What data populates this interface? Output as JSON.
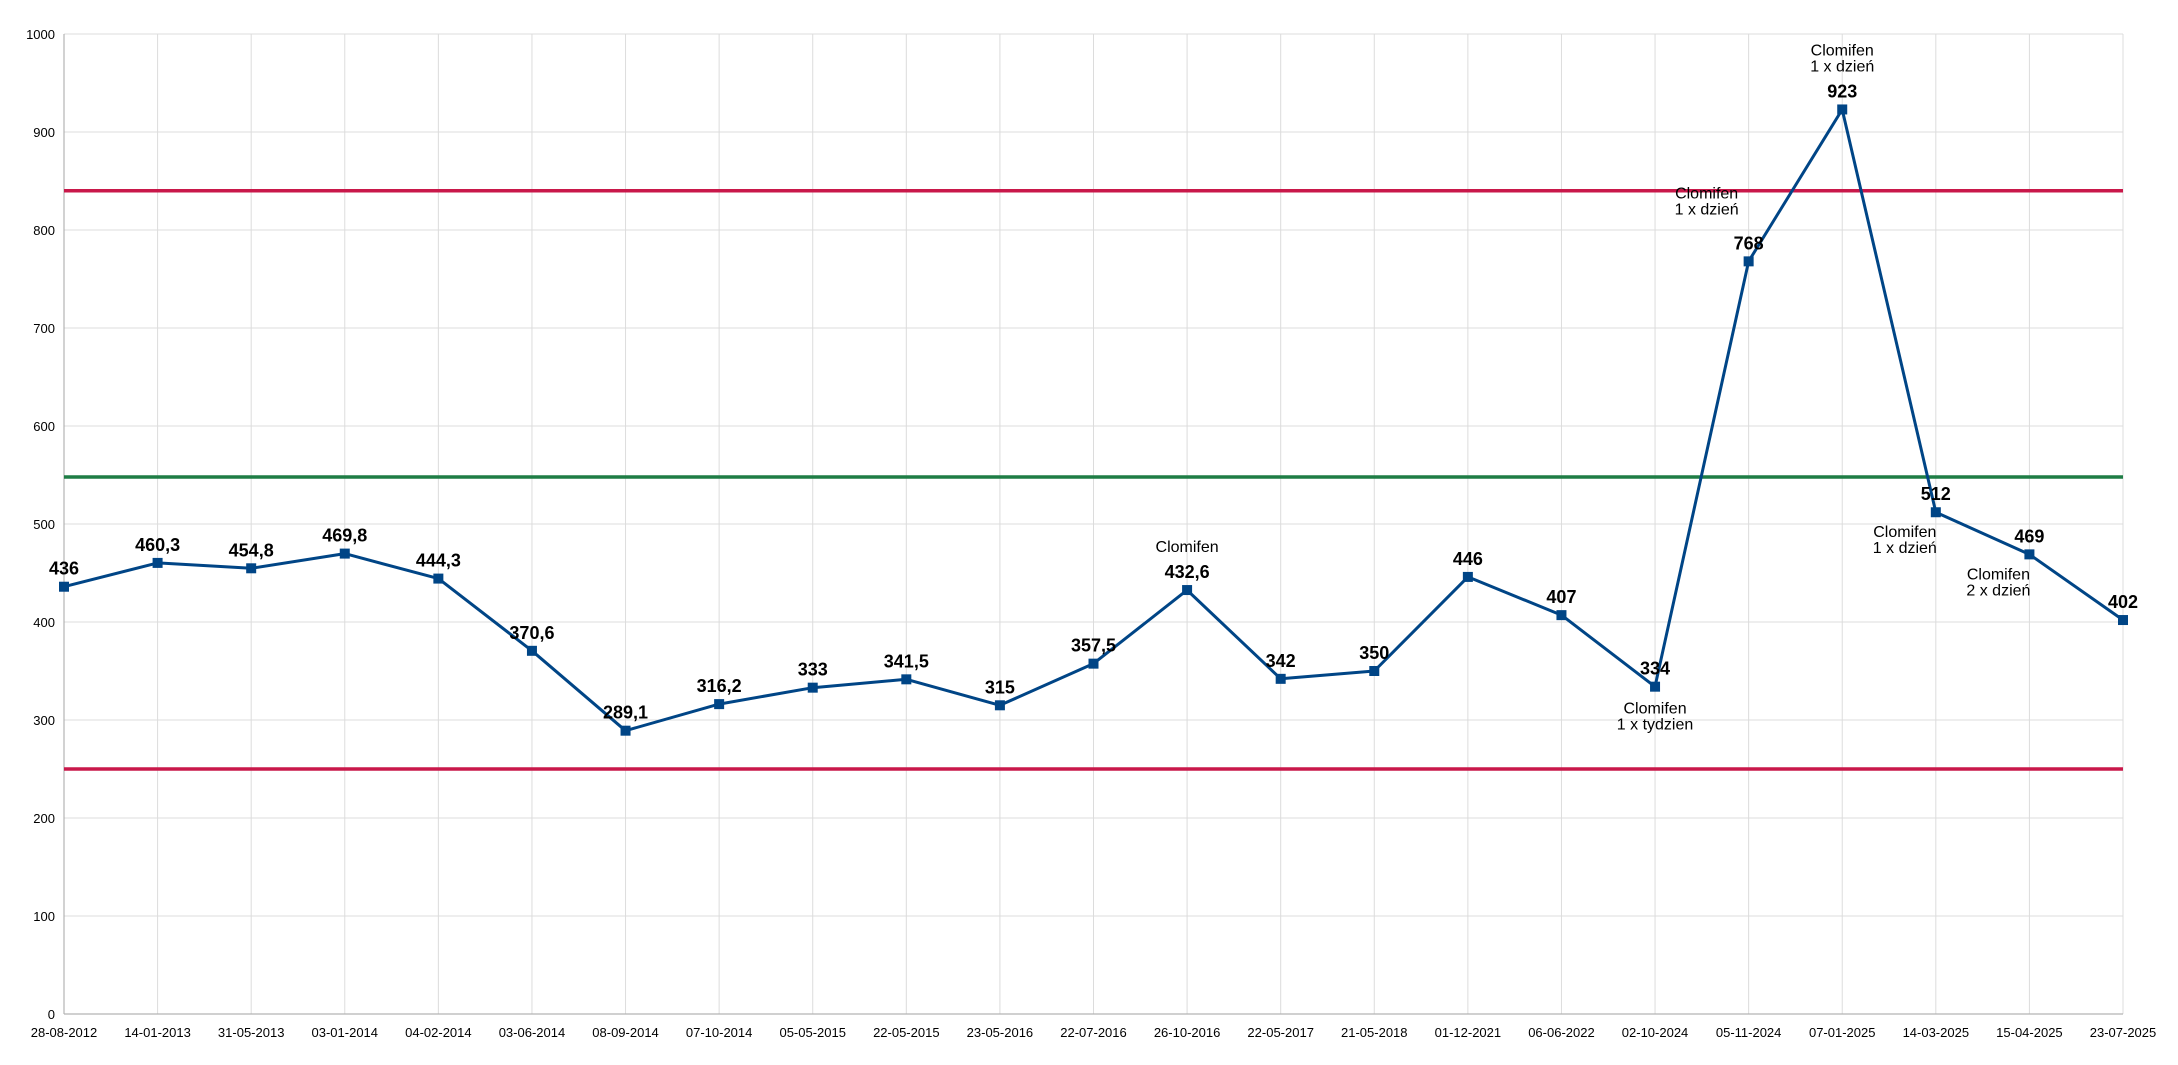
{
  "chart_data": {
    "type": "line",
    "title": "",
    "xlabel": "",
    "ylabel": "",
    "ylim": [
      0,
      1000
    ],
    "y_ticks": [
      "0",
      "100",
      "200",
      "300",
      "400",
      "500",
      "600",
      "700",
      "800",
      "900",
      "1000"
    ],
    "grid": true,
    "legend": "none",
    "categories": [
      "28-08-2012",
      "14-01-2013",
      "31-05-2013",
      "03-01-2014",
      "04-02-2014",
      "03-06-2014",
      "08-09-2014",
      "07-10-2014",
      "05-05-2015",
      "22-05-2015",
      "23-05-2016",
      "22-07-2016",
      "26-10-2016",
      "22-05-2017",
      "21-05-2018",
      "01-12-2021",
      "06-06-2022",
      "02-10-2024",
      "05-11-2024",
      "07-01-2025",
      "14-03-2025",
      "15-04-2025",
      "23-07-2025"
    ],
    "series": [
      {
        "color": "#004586",
        "values": [
          436,
          460.3,
          454.8,
          469.8,
          444.3,
          370.6,
          289.1,
          316.2,
          333,
          341.5,
          315,
          357.5,
          432.6,
          342,
          350,
          446,
          407,
          334,
          768,
          923,
          512,
          469,
          402
        ],
        "labels": [
          "436",
          "460,3",
          "454,8",
          "469,8",
          "444,3",
          "370,6",
          "289,1",
          "316,2",
          "333",
          "341,5",
          "315",
          "357,5",
          "432,6",
          "342",
          "350",
          "446",
          "407",
          "334",
          "768",
          "923",
          "512",
          "469",
          "402"
        ]
      }
    ],
    "reference_lines": [
      {
        "value": 840,
        "color": "#c9184a"
      },
      {
        "value": 548,
        "color": "#1e7d45"
      },
      {
        "value": 250,
        "color": "#c9184a"
      }
    ],
    "annotations": [
      {
        "index": 12,
        "position": "above",
        "lines": [
          "Clomifen"
        ]
      },
      {
        "index": 17,
        "position": "below",
        "lines": [
          "Clomifen",
          "1 x tydzien"
        ]
      },
      {
        "index": 18,
        "position": "above-left",
        "lines": [
          "Clomifen",
          "1  x dzień"
        ]
      },
      {
        "index": 19,
        "position": "above",
        "lines": [
          "Clomifen",
          "1 x dzień"
        ]
      },
      {
        "index": 20,
        "position": "below-left",
        "lines": [
          "Clomifen",
          "1 x dzień"
        ]
      },
      {
        "index": 21,
        "position": "below-left",
        "lines": [
          "Clomifen",
          "2 x dzień"
        ]
      }
    ]
  }
}
